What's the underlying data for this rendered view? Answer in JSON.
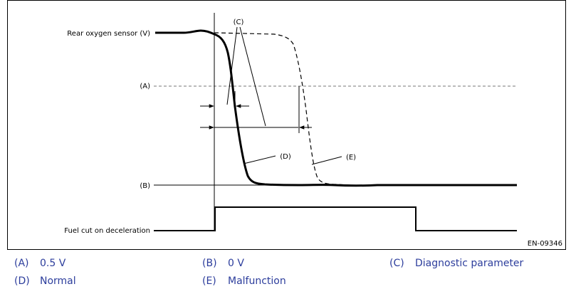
{
  "diagram": {
    "signal_labels": {
      "rear_sensor": "Rear oxygen sensor (V)",
      "fuel_cut": "Fuel cut on deceleration"
    },
    "level_labels": {
      "a": "(A)",
      "b": "(B)"
    },
    "callouts": {
      "c": "(C)",
      "d": "(D)",
      "e": "(E)"
    },
    "figure_code": "EN-09346"
  },
  "legend": {
    "items": [
      {
        "key": "(A)",
        "text": "0.5 V"
      },
      {
        "key": "(B)",
        "text": "0 V"
      },
      {
        "key": "(C)",
        "text": "Diagnostic parameter"
      },
      {
        "key": "(D)",
        "text": "Normal"
      },
      {
        "key": "(E)",
        "text": "Malfunction"
      }
    ]
  },
  "colors": {
    "legend_text": "#2c3d9c",
    "frame": "#000000",
    "threshold_line": "#777777"
  }
}
